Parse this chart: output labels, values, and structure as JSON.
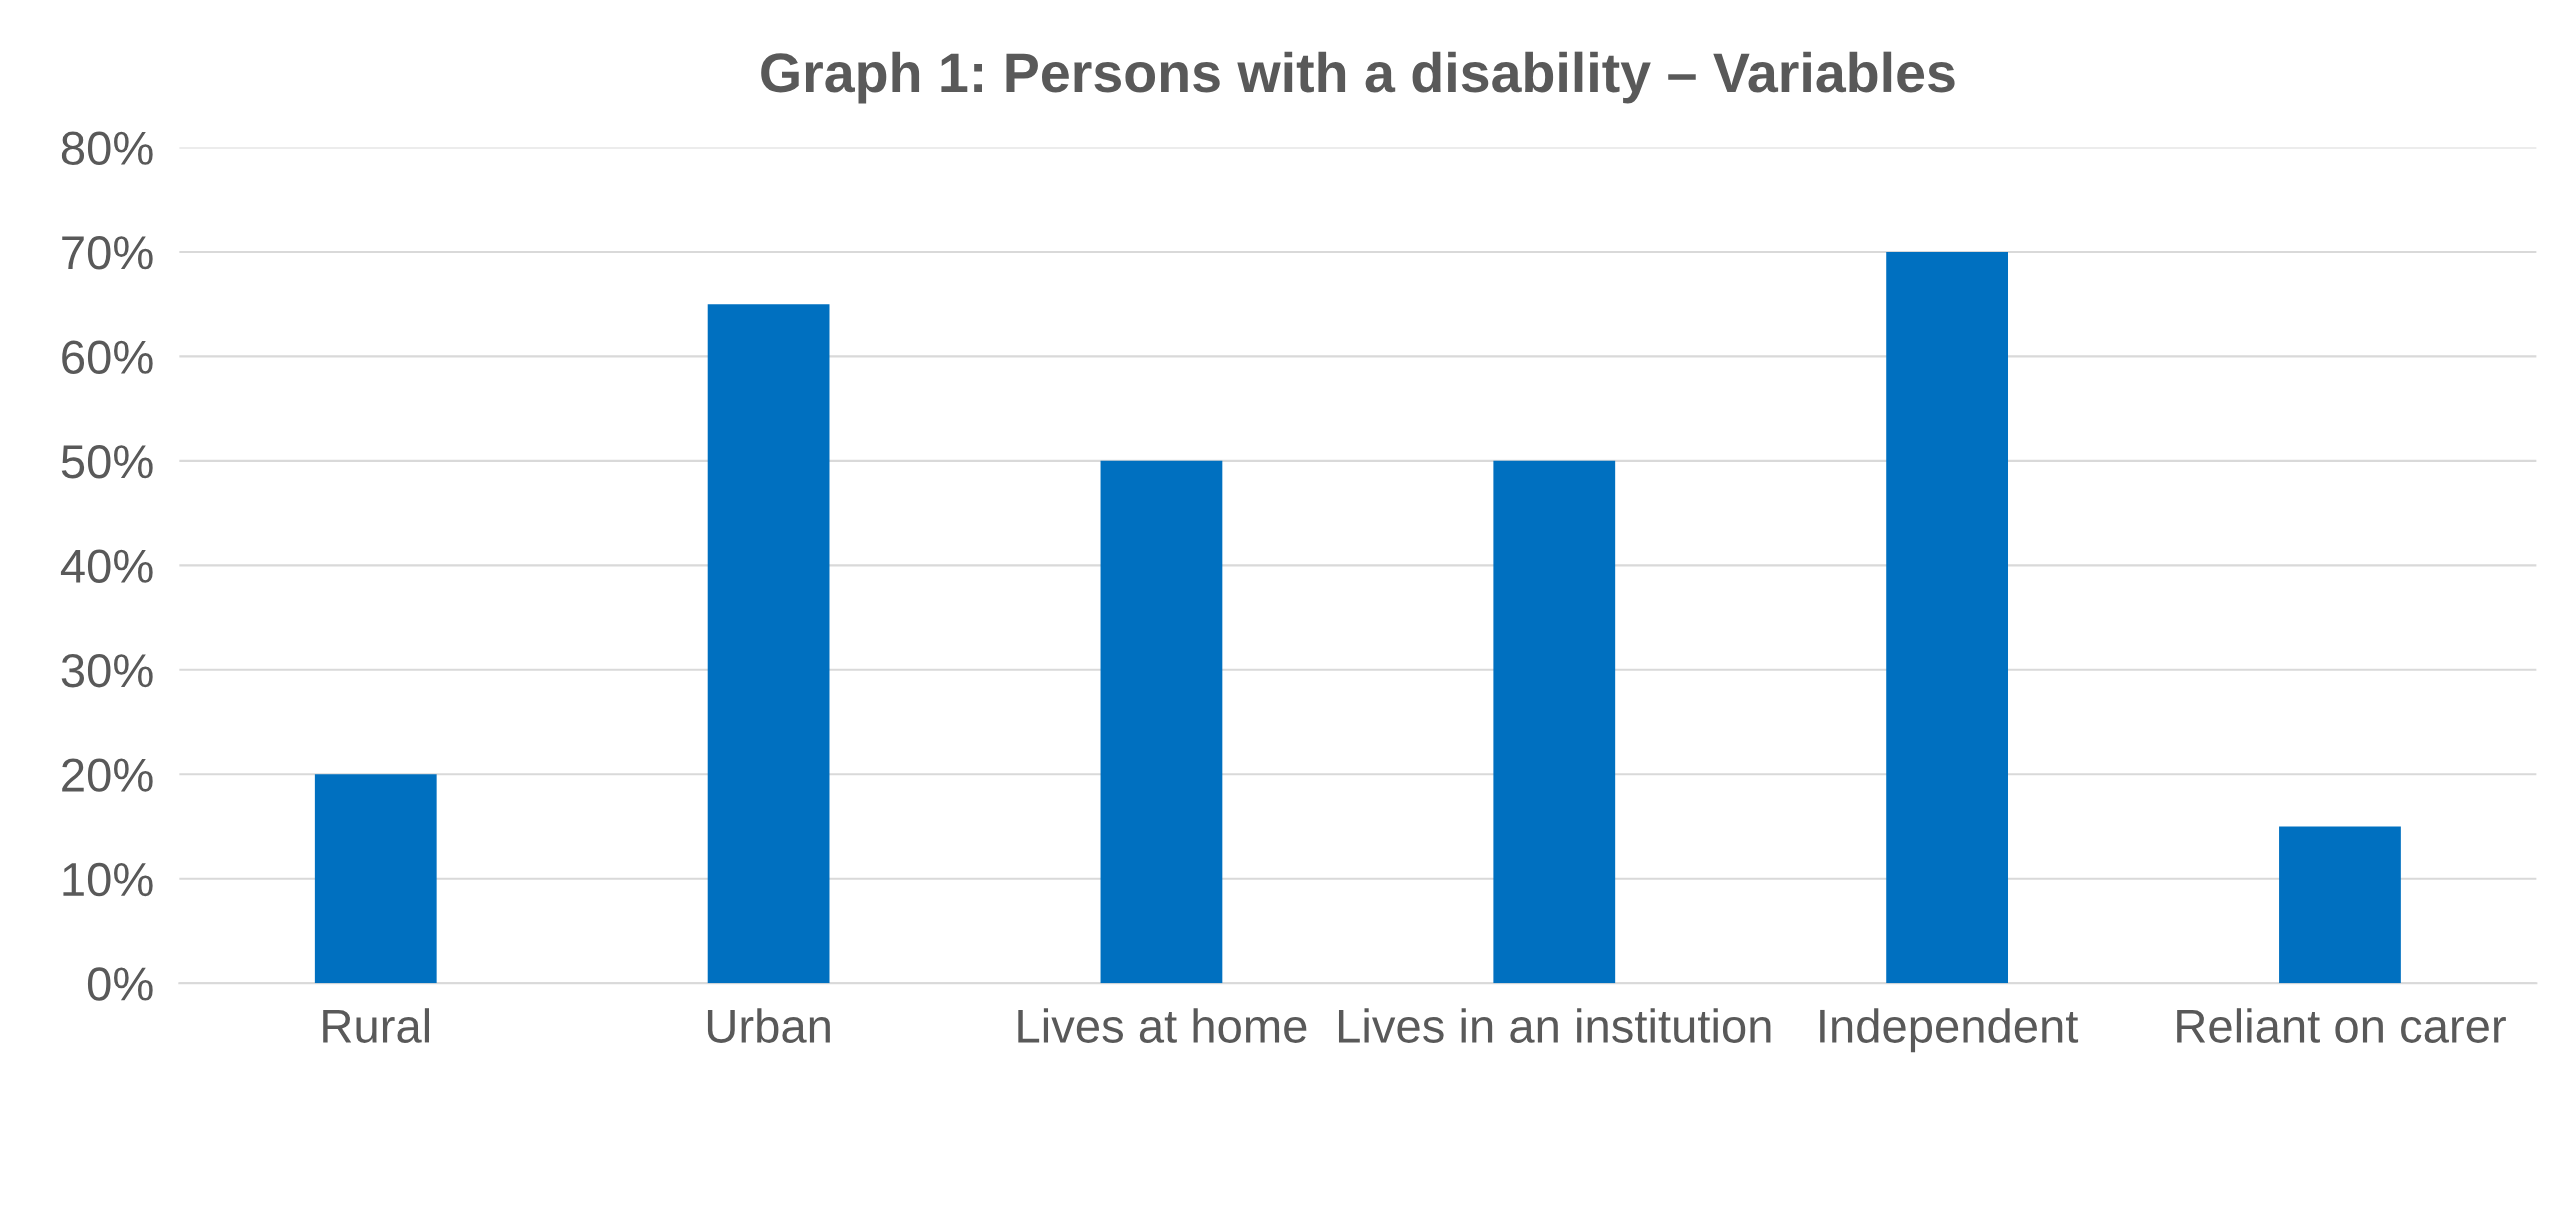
{
  "chart_data": {
    "type": "bar",
    "title": "Graph 1: Persons with a disability – Variables",
    "categories": [
      "Rural",
      "Urban",
      "Lives at home",
      "Lives in an institution",
      "Independent",
      "Reliant on carer"
    ],
    "values": [
      0.2,
      0.65,
      0.5,
      0.5,
      0.7,
      0.15
    ],
    "color": "#0070c0",
    "ylim": [
      0,
      0.8
    ],
    "yticks": [
      {
        "value": 0,
        "label": "0%"
      },
      {
        "value": 0.1,
        "label": "10%"
      },
      {
        "value": 0.2,
        "label": "20%"
      },
      {
        "value": 0.3,
        "label": "30%"
      },
      {
        "value": 0.4,
        "label": "40%"
      },
      {
        "value": 0.5,
        "label": "50%"
      },
      {
        "value": 0.6,
        "label": "60%"
      },
      {
        "value": 0.7,
        "label": "70%"
      },
      {
        "value": 0.8,
        "label": "80%"
      }
    ],
    "grid": "y"
  }
}
